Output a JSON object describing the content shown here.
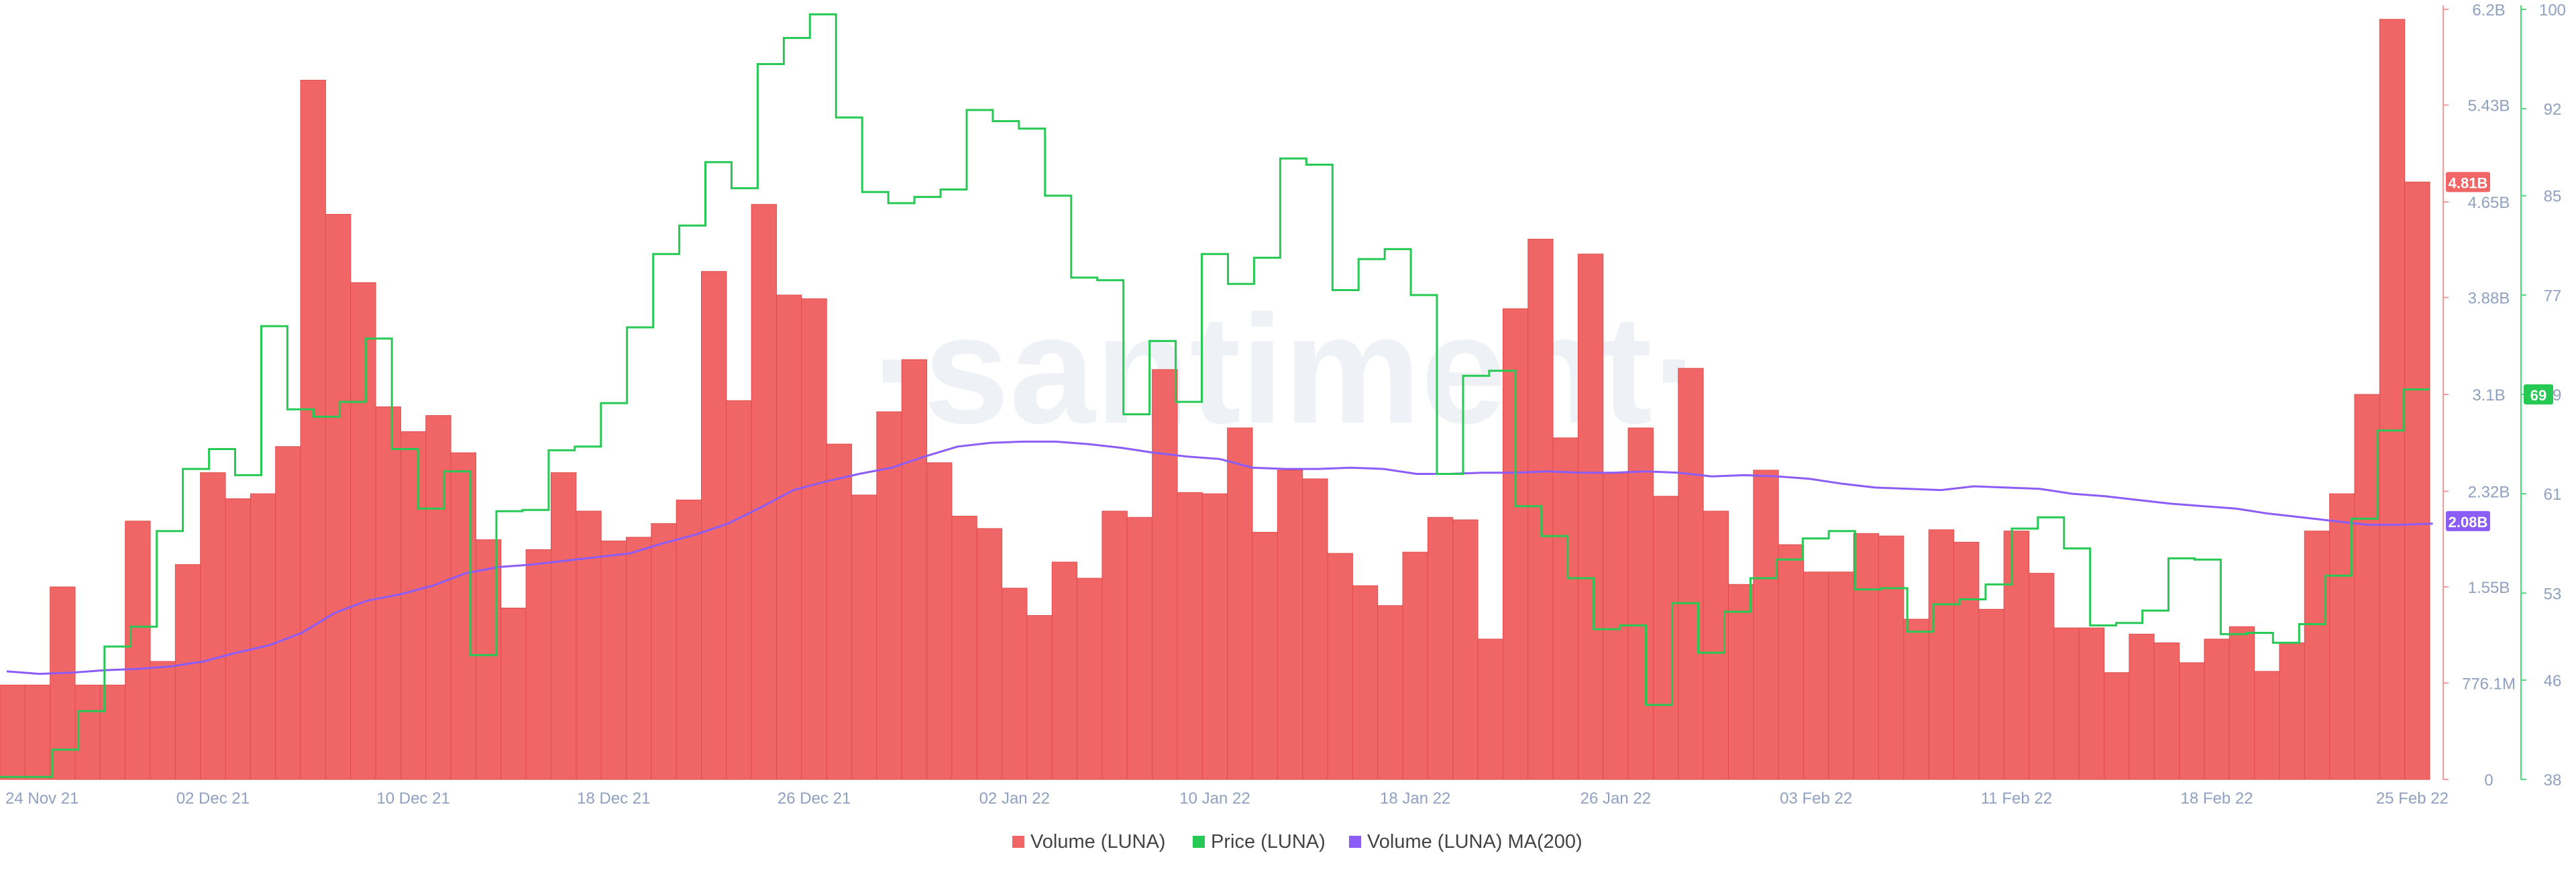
{
  "watermark": "·santiment·",
  "colors": {
    "volume": "#f06666",
    "volume_edge": "#e04b4b",
    "price": "#26c953",
    "ma": "#8b5cf6",
    "axis_text": "#8fa0c0",
    "left_axis_line": "#f79a9a",
    "right_axis_line": "#4cd97b",
    "watermark": "#eef1f6"
  },
  "chart_data": {
    "type": "bar+line",
    "x_start_index": 0,
    "x_tick_labels": [
      {
        "label": "24 Nov 21",
        "day": 0
      },
      {
        "label": "02 Dec 21",
        "day": 8
      },
      {
        "label": "10 Dec 21",
        "day": 16
      },
      {
        "label": "18 Dec 21",
        "day": 24
      },
      {
        "label": "26 Dec 21",
        "day": 32
      },
      {
        "label": "02 Jan 22",
        "day": 40
      },
      {
        "label": "10 Jan 22",
        "day": 48
      },
      {
        "label": "18 Jan 22",
        "day": 56
      },
      {
        "label": "26 Jan 22",
        "day": 64
      },
      {
        "label": "03 Feb 22",
        "day": 72
      },
      {
        "label": "11 Feb 22",
        "day": 80
      },
      {
        "label": "18 Feb 22",
        "day": 88
      },
      {
        "label": "25 Feb 22",
        "day": 95
      }
    ],
    "volume_axis": {
      "min": 0,
      "max": 6.2,
      "unit": "billion",
      "ticks": [
        {
          "v": 0,
          "label": "0"
        },
        {
          "v": 0.7761,
          "label": "776.1M"
        },
        {
          "v": 1.55,
          "label": "1.55B"
        },
        {
          "v": 2.32,
          "label": "2.32B"
        },
        {
          "v": 3.1,
          "label": "3.1B"
        },
        {
          "v": 3.88,
          "label": "3.88B"
        },
        {
          "v": 4.65,
          "label": "4.65B"
        },
        {
          "v": 5.43,
          "label": "5.43B"
        },
        {
          "v": 6.2,
          "label": "6.2B"
        }
      ]
    },
    "price_axis": {
      "min": 38,
      "max": 100,
      "ticks": [
        {
          "v": 38,
          "label": "38"
        },
        {
          "v": 46,
          "label": "46"
        },
        {
          "v": 53,
          "label": "53"
        },
        {
          "v": 61,
          "label": "61"
        },
        {
          "v": 69,
          "label": "69"
        },
        {
          "v": 77,
          "label": "77"
        },
        {
          "v": 85,
          "label": "85"
        },
        {
          "v": 92,
          "label": "92"
        },
        {
          "v": 100,
          "label": "100"
        }
      ]
    },
    "current_value_badges": [
      {
        "series": "Volume (LUNA)",
        "label": "4.81B",
        "value": 4.81,
        "axis": "left"
      },
      {
        "series": "Volume (LUNA) MA(200)",
        "label": "2.08B",
        "value": 2.08,
        "axis": "left"
      },
      {
        "series": "Price (LUNA)",
        "label": "69",
        "value": 69,
        "axis": "right"
      }
    ],
    "series": [
      {
        "name": "Volume (LUNA)",
        "kind": "bar",
        "axis": "left",
        "values": [
          0.76,
          0.76,
          1.55,
          0.76,
          0.76,
          2.08,
          0.95,
          1.73,
          2.47,
          2.26,
          2.3,
          2.68,
          5.63,
          4.55,
          4.0,
          3.0,
          2.8,
          2.93,
          2.63,
          1.93,
          1.38,
          1.85,
          2.47,
          2.16,
          1.92,
          1.95,
          2.06,
          2.25,
          4.09,
          3.05,
          4.63,
          3.9,
          3.87,
          2.7,
          2.29,
          2.96,
          3.38,
          2.55,
          2.12,
          2.02,
          1.54,
          1.32,
          1.75,
          1.62,
          2.16,
          2.11,
          3.3,
          2.31,
          2.3,
          2.83,
          1.99,
          2.49,
          2.42,
          1.82,
          1.56,
          1.4,
          1.83,
          2.11,
          2.09,
          1.13,
          3.79,
          4.35,
          2.75,
          4.23,
          2.47,
          2.83,
          2.28,
          3.31,
          2.16,
          1.57,
          2.49,
          1.89,
          1.67,
          1.67,
          1.98,
          1.96,
          1.29,
          2.01,
          1.91,
          1.37,
          2.0,
          1.66,
          1.22,
          1.22,
          0.86,
          1.17,
          1.1,
          0.94,
          1.13,
          1.23,
          0.87,
          1.1,
          2.0,
          2.3,
          3.1,
          6.12,
          4.81
        ]
      },
      {
        "name": "Price (LUNA)",
        "kind": "step-line",
        "axis": "right",
        "values": [
          38.2,
          38.2,
          40.4,
          43.5,
          48.7,
          50.3,
          58.0,
          63.0,
          64.6,
          62.5,
          74.5,
          67.8,
          67.2,
          68.4,
          73.5,
          64.6,
          59.8,
          62.8,
          48.0,
          59.6,
          59.7,
          64.5,
          64.8,
          68.3,
          74.4,
          80.3,
          82.6,
          87.7,
          85.6,
          95.6,
          97.7,
          99.6,
          91.3,
          85.3,
          84.4,
          84.9,
          85.5,
          91.9,
          91.0,
          90.4,
          85.0,
          78.4,
          78.2,
          67.4,
          73.3,
          68.4,
          80.3,
          77.9,
          80.0,
          88.0,
          87.5,
          77.4,
          79.9,
          80.7,
          77.0,
          62.6,
          70.5,
          70.9,
          60.0,
          57.6,
          54.2,
          50.1,
          50.4,
          44.0,
          52.2,
          48.2,
          51.5,
          54.2,
          55.7,
          57.4,
          58.0,
          53.3,
          53.4,
          49.9,
          52.1,
          52.5,
          53.7,
          58.2,
          59.1,
          56.6,
          50.4,
          50.6,
          51.6,
          55.8,
          55.7,
          49.7,
          49.8,
          49.0,
          50.5,
          54.4,
          59.0,
          66.1,
          69.4
        ]
      },
      {
        "name": "Volume (LUNA) MA(200)",
        "kind": "line",
        "axis": "left",
        "values": [
          0.87,
          0.85,
          0.86,
          0.88,
          0.89,
          0.91,
          0.95,
          1.02,
          1.08,
          1.18,
          1.34,
          1.44,
          1.49,
          1.56,
          1.66,
          1.71,
          1.73,
          1.76,
          1.79,
          1.82,
          1.9,
          1.97,
          2.06,
          2.19,
          2.33,
          2.4,
          2.46,
          2.51,
          2.6,
          2.68,
          2.71,
          2.72,
          2.72,
          2.7,
          2.67,
          2.63,
          2.6,
          2.58,
          2.51,
          2.5,
          2.5,
          2.51,
          2.5,
          2.46,
          2.46,
          2.47,
          2.47,
          2.48,
          2.47,
          2.47,
          2.48,
          2.47,
          2.44,
          2.45,
          2.44,
          2.42,
          2.38,
          2.35,
          2.34,
          2.33,
          2.36,
          2.35,
          2.34,
          2.3,
          2.28,
          2.25,
          2.22,
          2.2,
          2.18,
          2.14,
          2.11,
          2.08,
          2.05,
          2.05,
          2.06
        ]
      }
    ],
    "legend": [
      "Volume (LUNA)",
      "Price (LUNA)",
      "Volume (LUNA) MA(200)"
    ],
    "legend_placement": "bottom-center",
    "grid": false
  }
}
